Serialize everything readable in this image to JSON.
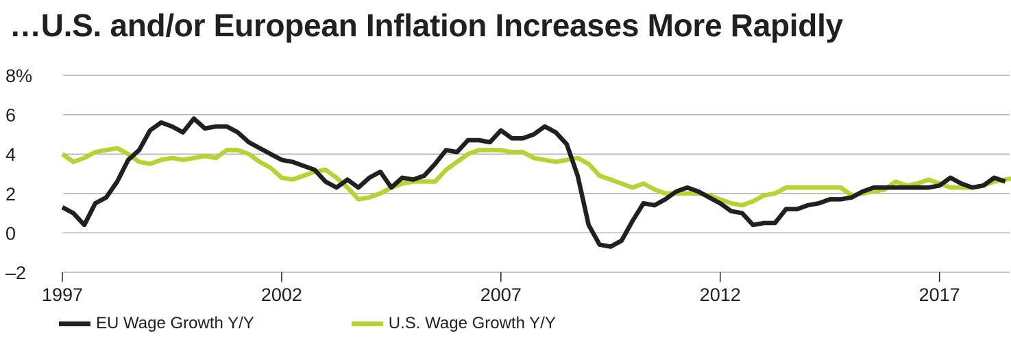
{
  "chart_data": {
    "type": "line",
    "title": "…U.S. and/or European Inflation Increases More Rapidly",
    "xlabel": "",
    "ylabel": "",
    "x_tick_labels": [
      "1997",
      "2002",
      "2007",
      "2012",
      "2017"
    ],
    "x_tick_values": [
      1997,
      2002,
      2007,
      2012,
      2017
    ],
    "y_tick_labels": [
      "8%",
      "6",
      "4",
      "2",
      "0",
      "–2"
    ],
    "y_tick_values": [
      8,
      6,
      4,
      2,
      0,
      -2
    ],
    "xlim": [
      1997,
      2018.6
    ],
    "ylim": [
      -2,
      8
    ],
    "grid": true,
    "legend_position": "bottom-left",
    "series": [
      {
        "name": "EU Wage Growth Y/Y",
        "color": "#231f20",
        "points": [
          [
            1997.0,
            1.3
          ],
          [
            1997.25,
            1.0
          ],
          [
            1997.5,
            0.4
          ],
          [
            1997.75,
            1.5
          ],
          [
            1998.0,
            1.8
          ],
          [
            1998.25,
            2.6
          ],
          [
            1998.5,
            3.7
          ],
          [
            1998.75,
            4.2
          ],
          [
            1999.0,
            5.2
          ],
          [
            1999.25,
            5.6
          ],
          [
            1999.5,
            5.4
          ],
          [
            1999.75,
            5.1
          ],
          [
            2000.0,
            5.8
          ],
          [
            2000.25,
            5.3
          ],
          [
            2000.5,
            5.4
          ],
          [
            2000.75,
            5.4
          ],
          [
            2001.0,
            5.1
          ],
          [
            2001.25,
            4.6
          ],
          [
            2001.5,
            4.3
          ],
          [
            2001.75,
            4.0
          ],
          [
            2002.0,
            3.7
          ],
          [
            2002.25,
            3.6
          ],
          [
            2002.5,
            3.4
          ],
          [
            2002.75,
            3.2
          ],
          [
            2003.0,
            2.6
          ],
          [
            2003.25,
            2.3
          ],
          [
            2003.5,
            2.7
          ],
          [
            2003.75,
            2.3
          ],
          [
            2004.0,
            2.8
          ],
          [
            2004.25,
            3.1
          ],
          [
            2004.5,
            2.3
          ],
          [
            2004.75,
            2.8
          ],
          [
            2005.0,
            2.7
          ],
          [
            2005.25,
            2.9
          ],
          [
            2005.5,
            3.5
          ],
          [
            2005.75,
            4.2
          ],
          [
            2006.0,
            4.1
          ],
          [
            2006.25,
            4.7
          ],
          [
            2006.5,
            4.7
          ],
          [
            2006.75,
            4.6
          ],
          [
            2007.0,
            5.2
          ],
          [
            2007.25,
            4.8
          ],
          [
            2007.5,
            4.8
          ],
          [
            2007.75,
            5.0
          ],
          [
            2008.0,
            5.4
          ],
          [
            2008.25,
            5.1
          ],
          [
            2008.5,
            4.5
          ],
          [
            2008.75,
            2.9
          ],
          [
            2009.0,
            0.4
          ],
          [
            2009.25,
            -0.6
          ],
          [
            2009.5,
            -0.7
          ],
          [
            2009.75,
            -0.4
          ],
          [
            2010.0,
            0.6
          ],
          [
            2010.25,
            1.5
          ],
          [
            2010.5,
            1.4
          ],
          [
            2010.75,
            1.7
          ],
          [
            2011.0,
            2.1
          ],
          [
            2011.25,
            2.3
          ],
          [
            2011.5,
            2.1
          ],
          [
            2011.75,
            1.8
          ],
          [
            2012.0,
            1.5
          ],
          [
            2012.25,
            1.1
          ],
          [
            2012.5,
            1.0
          ],
          [
            2012.75,
            0.4
          ],
          [
            2013.0,
            0.5
          ],
          [
            2013.25,
            0.5
          ],
          [
            2013.5,
            1.2
          ],
          [
            2013.75,
            1.2
          ],
          [
            2014.0,
            1.4
          ],
          [
            2014.25,
            1.5
          ],
          [
            2014.5,
            1.7
          ],
          [
            2014.75,
            1.7
          ],
          [
            2015.0,
            1.8
          ],
          [
            2015.25,
            2.1
          ],
          [
            2015.5,
            2.3
          ],
          [
            2015.75,
            2.3
          ],
          [
            2016.0,
            2.3
          ],
          [
            2016.25,
            2.3
          ],
          [
            2016.5,
            2.3
          ],
          [
            2016.75,
            2.3
          ],
          [
            2017.0,
            2.4
          ],
          [
            2017.25,
            2.8
          ],
          [
            2017.5,
            2.5
          ],
          [
            2017.75,
            2.3
          ],
          [
            2018.0,
            2.4
          ],
          [
            2018.25,
            2.8
          ],
          [
            2018.5,
            2.6
          ]
        ]
      },
      {
        "name": "U.S. Wage Growth Y/Y",
        "color": "#b5d334",
        "points": [
          [
            1997.0,
            4.0
          ],
          [
            1997.25,
            3.6
          ],
          [
            1997.5,
            3.8
          ],
          [
            1997.75,
            4.1
          ],
          [
            1998.0,
            4.2
          ],
          [
            1998.25,
            4.3
          ],
          [
            1998.5,
            4.0
          ],
          [
            1998.75,
            3.6
          ],
          [
            1999.0,
            3.5
          ],
          [
            1999.25,
            3.7
          ],
          [
            1999.5,
            3.8
          ],
          [
            1999.75,
            3.7
          ],
          [
            2000.0,
            3.8
          ],
          [
            2000.25,
            3.9
          ],
          [
            2000.5,
            3.8
          ],
          [
            2000.75,
            4.2
          ],
          [
            2001.0,
            4.2
          ],
          [
            2001.25,
            4.0
          ],
          [
            2001.5,
            3.6
          ],
          [
            2001.75,
            3.3
          ],
          [
            2002.0,
            2.8
          ],
          [
            2002.25,
            2.7
          ],
          [
            2002.5,
            2.9
          ],
          [
            2002.75,
            3.1
          ],
          [
            2003.0,
            3.2
          ],
          [
            2003.25,
            2.8
          ],
          [
            2003.5,
            2.3
          ],
          [
            2003.75,
            1.7
          ],
          [
            2004.0,
            1.8
          ],
          [
            2004.25,
            2.0
          ],
          [
            2004.5,
            2.3
          ],
          [
            2004.75,
            2.5
          ],
          [
            2005.0,
            2.6
          ],
          [
            2005.25,
            2.6
          ],
          [
            2005.5,
            2.6
          ],
          [
            2005.75,
            3.2
          ],
          [
            2006.0,
            3.6
          ],
          [
            2006.25,
            4.0
          ],
          [
            2006.5,
            4.2
          ],
          [
            2006.75,
            4.2
          ],
          [
            2007.0,
            4.2
          ],
          [
            2007.25,
            4.1
          ],
          [
            2007.5,
            4.1
          ],
          [
            2007.75,
            3.8
          ],
          [
            2008.0,
            3.7
          ],
          [
            2008.25,
            3.6
          ],
          [
            2008.5,
            3.7
          ],
          [
            2008.75,
            3.8
          ],
          [
            2009.0,
            3.5
          ],
          [
            2009.25,
            2.9
          ],
          [
            2009.5,
            2.7
          ],
          [
            2009.75,
            2.5
          ],
          [
            2010.0,
            2.3
          ],
          [
            2010.25,
            2.5
          ],
          [
            2010.5,
            2.2
          ],
          [
            2010.75,
            2.0
          ],
          [
            2011.0,
            2.0
          ],
          [
            2011.25,
            2.0
          ],
          [
            2011.5,
            2.0
          ],
          [
            2011.75,
            1.9
          ],
          [
            2012.0,
            1.7
          ],
          [
            2012.25,
            1.5
          ],
          [
            2012.5,
            1.4
          ],
          [
            2012.75,
            1.6
          ],
          [
            2013.0,
            1.9
          ],
          [
            2013.25,
            2.0
          ],
          [
            2013.5,
            2.3
          ],
          [
            2013.75,
            2.3
          ],
          [
            2014.0,
            2.3
          ],
          [
            2014.25,
            2.3
          ],
          [
            2014.5,
            2.3
          ],
          [
            2014.75,
            2.3
          ],
          [
            2015.0,
            1.9
          ],
          [
            2015.25,
            2.0
          ],
          [
            2015.5,
            2.1
          ],
          [
            2015.75,
            2.2
          ],
          [
            2016.0,
            2.6
          ],
          [
            2016.25,
            2.4
          ],
          [
            2016.5,
            2.5
          ],
          [
            2016.75,
            2.7
          ],
          [
            2017.0,
            2.5
          ],
          [
            2017.25,
            2.3
          ],
          [
            2017.5,
            2.3
          ],
          [
            2017.75,
            2.3
          ],
          [
            2018.0,
            2.4
          ],
          [
            2018.25,
            2.6
          ],
          [
            2018.5,
            2.7
          ],
          [
            2018.75,
            2.8
          ]
        ]
      }
    ]
  },
  "colors": {
    "eu_line": "#231f20",
    "us_line": "#b5d334",
    "gridline": "#b3b3b3",
    "text": "#231f20"
  }
}
